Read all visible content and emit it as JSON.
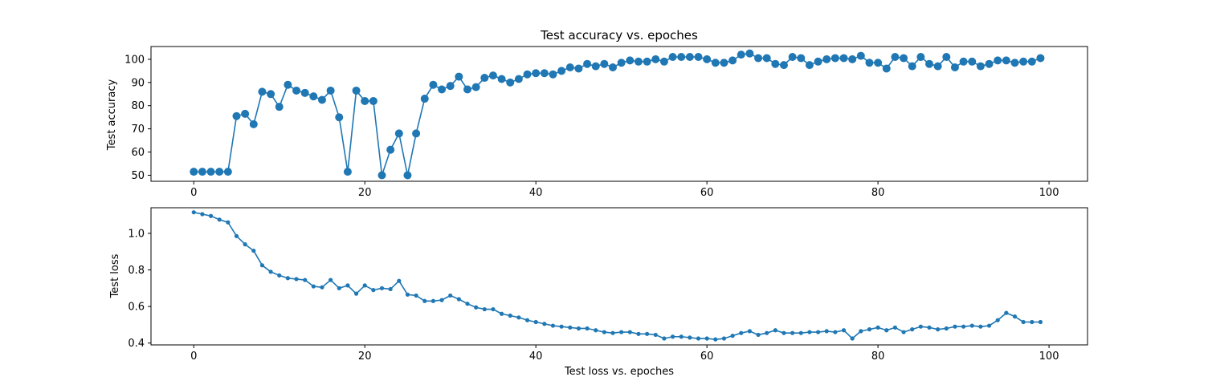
{
  "chart_data": [
    {
      "type": "line",
      "title": "Test accuracy vs. epoches",
      "xlabel": "",
      "ylabel": "Test accuracy",
      "xlim": [
        -5,
        104.5
      ],
      "ylim": [
        47.4,
        105.5
      ],
      "xticks": [
        0,
        20,
        40,
        60,
        80,
        100
      ],
      "yticks": [
        50,
        60,
        70,
        80,
        90,
        100
      ],
      "grid": false,
      "color": "#1f77b4",
      "marker": "large-dot",
      "x": [
        0,
        1,
        2,
        3,
        4,
        5,
        6,
        7,
        8,
        9,
        10,
        11,
        12,
        13,
        14,
        15,
        16,
        17,
        18,
        19,
        20,
        21,
        22,
        23,
        24,
        25,
        26,
        27,
        28,
        29,
        30,
        31,
        32,
        33,
        34,
        35,
        36,
        37,
        38,
        39,
        40,
        41,
        42,
        43,
        44,
        45,
        46,
        47,
        48,
        49,
        50,
        51,
        52,
        53,
        54,
        55,
        56,
        57,
        58,
        59,
        60,
        61,
        62,
        63,
        64,
        65,
        66,
        67,
        68,
        69,
        70,
        71,
        72,
        73,
        74,
        75,
        76,
        77,
        78,
        79,
        80,
        81,
        82,
        83,
        84,
        85,
        86,
        87,
        88,
        89,
        90,
        91,
        92,
        93,
        94,
        95,
        96,
        97,
        98,
        99
      ],
      "y": [
        51.5,
        51.5,
        51.5,
        51.5,
        51.5,
        75.5,
        76.5,
        72,
        86,
        85,
        79.5,
        89,
        86.5,
        85.5,
        84,
        82.5,
        86.5,
        75,
        51.5,
        86.5,
        82,
        82,
        50,
        61,
        68,
        50,
        68,
        83,
        89,
        87,
        88.5,
        92.5,
        87,
        88,
        92,
        93,
        91.5,
        90,
        91.5,
        93.5,
        94,
        94,
        93.5,
        95,
        96.5,
        96,
        98,
        97,
        98,
        96.5,
        98.5,
        99.5,
        99,
        99,
        100,
        99,
        101,
        101,
        101,
        101,
        100,
        98.5,
        98.5,
        99.5,
        102,
        102.5,
        100.5,
        100.5,
        98,
        97.5,
        101,
        100.5,
        97.5,
        99,
        100,
        100.5,
        100.5,
        100,
        101.5,
        98.5,
        98.5,
        96,
        101,
        100.5,
        97,
        101,
        98,
        97,
        101,
        96.5,
        99,
        99,
        97,
        98,
        99.5,
        99.5,
        98.5,
        99,
        99,
        100.5
      ]
    },
    {
      "type": "line",
      "title": "",
      "xlabel": "Test loss vs. epoches",
      "ylabel": "Test loss",
      "xlim": [
        -5,
        104.5
      ],
      "ylim": [
        0.39,
        1.14
      ],
      "xticks": [
        0,
        20,
        40,
        60,
        80,
        100
      ],
      "yticks": [
        0.4,
        0.6,
        0.8,
        1.0
      ],
      "ytick_labels": [
        "0.4",
        "0.6",
        "0.8",
        "1.0"
      ],
      "grid": false,
      "color": "#1f77b4",
      "marker": "small-dot",
      "x": [
        0,
        1,
        2,
        3,
        4,
        5,
        6,
        7,
        8,
        9,
        10,
        11,
        12,
        13,
        14,
        15,
        16,
        17,
        18,
        19,
        20,
        21,
        22,
        23,
        24,
        25,
        26,
        27,
        28,
        29,
        30,
        31,
        32,
        33,
        34,
        35,
        36,
        37,
        38,
        39,
        40,
        41,
        42,
        43,
        44,
        45,
        46,
        47,
        48,
        49,
        50,
        51,
        52,
        53,
        54,
        55,
        56,
        57,
        58,
        59,
        60,
        61,
        62,
        63,
        64,
        65,
        66,
        67,
        68,
        69,
        70,
        71,
        72,
        73,
        74,
        75,
        76,
        77,
        78,
        79,
        80,
        81,
        82,
        83,
        84,
        85,
        86,
        87,
        88,
        89,
        90,
        91,
        92,
        93,
        94,
        95,
        96,
        97,
        98,
        99
      ],
      "y": [
        1.115,
        1.105,
        1.095,
        1.075,
        1.06,
        0.985,
        0.94,
        0.905,
        0.825,
        0.79,
        0.77,
        0.755,
        0.75,
        0.745,
        0.71,
        0.705,
        0.745,
        0.7,
        0.715,
        0.67,
        0.715,
        0.69,
        0.7,
        0.695,
        0.74,
        0.665,
        0.66,
        0.63,
        0.63,
        0.635,
        0.66,
        0.64,
        0.615,
        0.595,
        0.585,
        0.585,
        0.56,
        0.55,
        0.54,
        0.525,
        0.515,
        0.505,
        0.495,
        0.49,
        0.485,
        0.48,
        0.48,
        0.47,
        0.46,
        0.455,
        0.46,
        0.46,
        0.45,
        0.45,
        0.445,
        0.425,
        0.435,
        0.435,
        0.43,
        0.425,
        0.425,
        0.42,
        0.425,
        0.44,
        0.455,
        0.465,
        0.445,
        0.455,
        0.47,
        0.455,
        0.455,
        0.455,
        0.46,
        0.46,
        0.465,
        0.46,
        0.47,
        0.425,
        0.465,
        0.475,
        0.485,
        0.47,
        0.485,
        0.46,
        0.475,
        0.49,
        0.485,
        0.475,
        0.48,
        0.49,
        0.49,
        0.495,
        0.49,
        0.495,
        0.525,
        0.565,
        0.545,
        0.515,
        0.515,
        0.515
      ]
    }
  ]
}
